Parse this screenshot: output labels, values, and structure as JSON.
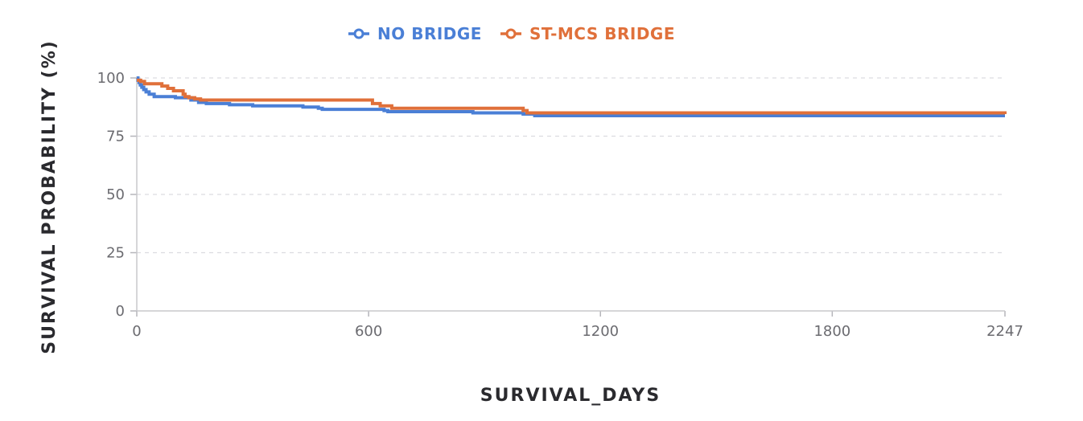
{
  "chart_data": {
    "type": "line",
    "step": true,
    "xlabel": "SURVIVAL_DAYS",
    "ylabel": "SURVIVAL PROBABILITY (%)",
    "xlim": [
      0,
      2247
    ],
    "ylim": [
      0,
      100
    ],
    "xticks": [
      0,
      600,
      1200,
      1800,
      2247
    ],
    "yticks": [
      0,
      25,
      50,
      75,
      100
    ],
    "grid": "horizontal-dashed",
    "legend_position": "top-center",
    "series": [
      {
        "name": "NO BRIDGE",
        "color": "#4a7fd6",
        "points": [
          [
            0,
            100
          ],
          [
            3,
            99
          ],
          [
            6,
            98
          ],
          [
            9,
            97
          ],
          [
            13,
            96
          ],
          [
            18,
            95
          ],
          [
            24,
            94
          ],
          [
            32,
            93
          ],
          [
            45,
            92
          ],
          [
            100,
            91.5
          ],
          [
            140,
            90.5
          ],
          [
            160,
            89.5
          ],
          [
            180,
            89
          ],
          [
            240,
            88.5
          ],
          [
            300,
            88
          ],
          [
            430,
            87.5
          ],
          [
            470,
            87
          ],
          [
            480,
            86.5
          ],
          [
            640,
            86
          ],
          [
            650,
            85.5
          ],
          [
            870,
            85
          ],
          [
            1000,
            84.5
          ],
          [
            1030,
            83.8
          ],
          [
            2247,
            83.8
          ]
        ]
      },
      {
        "name": "ST-MCS BRIDGE",
        "color": "#e0703a",
        "points": [
          [
            0,
            99
          ],
          [
            10,
            98.5
          ],
          [
            20,
            97.5
          ],
          [
            65,
            96.5
          ],
          [
            80,
            95.5
          ],
          [
            95,
            94.5
          ],
          [
            120,
            93
          ],
          [
            125,
            92
          ],
          [
            135,
            91.5
          ],
          [
            150,
            91
          ],
          [
            165,
            90.5
          ],
          [
            610,
            89
          ],
          [
            630,
            88
          ],
          [
            660,
            87
          ],
          [
            1000,
            86
          ],
          [
            1010,
            85
          ],
          [
            2247,
            84.5
          ]
        ]
      }
    ]
  }
}
